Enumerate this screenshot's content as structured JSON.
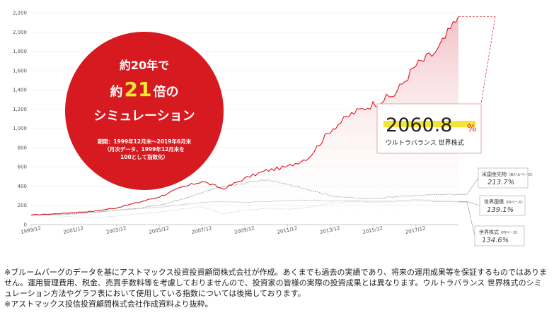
{
  "chart_data": {
    "type": "line",
    "ylim": [
      0,
      2200
    ],
    "yticks": [
      "0",
      "200",
      "400",
      "600",
      "800",
      "1,000",
      "1,200",
      "1,400",
      "1,600",
      "1,800",
      "2,000",
      "2,200"
    ],
    "xticks": [
      "1999/12",
      "2001/12",
      "2003/12",
      "2005/12",
      "2007/12",
      "2009/12",
      "2011/12",
      "2013/12",
      "2015/12",
      "2017/12"
    ],
    "grid": true,
    "x": [
      "1999/12",
      "2000/12",
      "2001/12",
      "2002/12",
      "2003/12",
      "2004/12",
      "2005/12",
      "2006/12",
      "2007/12",
      "2008/12",
      "2009/12",
      "2010/12",
      "2011/12",
      "2012/12",
      "2013/12",
      "2014/12",
      "2015/12",
      "2016/12",
      "2017/12",
      "2018/12",
      "2019/6"
    ],
    "series": [
      {
        "name": "ウルトラバランス 世界株式",
        "color": "#d71920",
        "values": [
          100,
          110,
          125,
          140,
          175,
          230,
          290,
          380,
          450,
          370,
          480,
          560,
          600,
          700,
          980,
          1150,
          1250,
          1350,
          1650,
          1800,
          2160
        ]
      },
      {
        "name": "米国金先物",
        "color": "#9a9a9a",
        "values": [
          100,
          105,
          110,
          125,
          150,
          170,
          200,
          260,
          330,
          400,
          430,
          470,
          420,
          360,
          300,
          280,
          270,
          290,
          300,
          310,
          314
        ]
      },
      {
        "name": "世界国債",
        "color": "#b5b5b5",
        "values": [
          100,
          105,
          115,
          130,
          150,
          165,
          180,
          205,
          230,
          240,
          230,
          240,
          250,
          255,
          245,
          250,
          240,
          245,
          250,
          240,
          239
        ]
      },
      {
        "name": "世界株式",
        "color": "#cfcfcf",
        "values": [
          100,
          95,
          80,
          70,
          90,
          110,
          130,
          160,
          185,
          110,
          150,
          170,
          160,
          180,
          220,
          240,
          230,
          240,
          260,
          250,
          235
        ]
      }
    ]
  },
  "callout": {
    "line1": "約20年で",
    "line2_pre": "約",
    "line2_num": "21",
    "line2_post": "倍の",
    "line3": "シミュレーション",
    "period1": "期間：1999年12月末～2019年6月末",
    "period2": "（月次データ、1999年12月末を",
    "period3": "100として指数化）",
    "bg_color": "#d71920"
  },
  "result_box": {
    "value": "2060.8",
    "unit": "%",
    "label": "ウルトラバランス 世界株式",
    "highlight_color": "#f4e535"
  },
  "legend_boxes": [
    {
      "name": "米国金先物",
      "sub": "（米ドルベース）",
      "value": "213.7%"
    },
    {
      "name": "世界国債",
      "sub": "（円ベース）",
      "value": "139.1%"
    },
    {
      "name": "世界株式",
      "sub": "（円ベース）",
      "value": "134.6%"
    }
  ],
  "notes": {
    "line1": "※ブルームバーグのデータを基にアストマックス投資投資顧問株式会社が作成。あくまでも過去の実績であり、将来の運用成果等を保証するものではありません。運用管理費用、税金、売買手数料等を考慮しておりませんので、投資家の皆様の実際の投資成果とは異なります。ウルトラバランス 世界株式のシミュレーション方法やグラフ表において使用している指数については後掲しております。",
    "line2": "※アストマックス投信投資顧問株式会社作成資料より抜粋。"
  }
}
